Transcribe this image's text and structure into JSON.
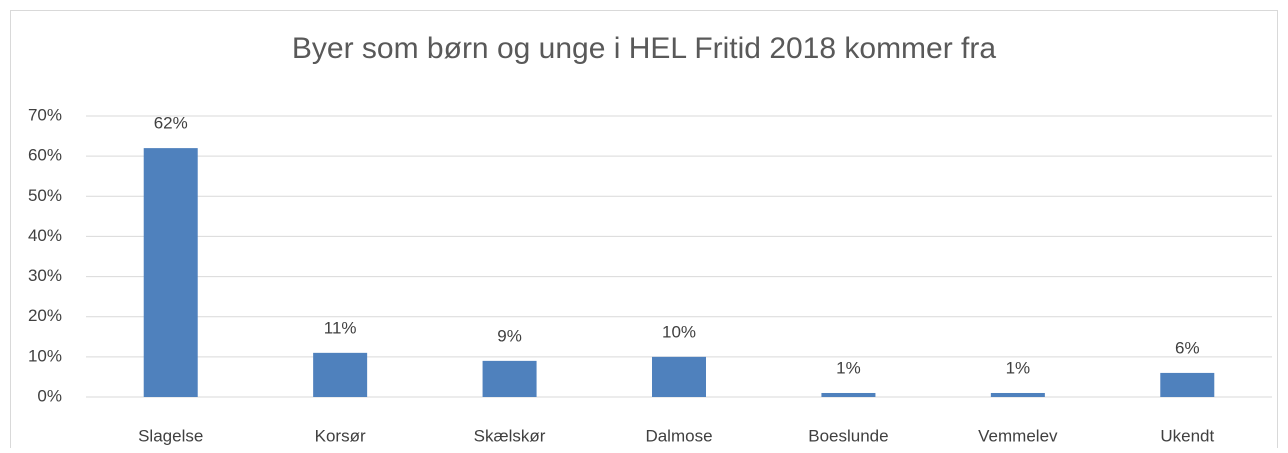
{
  "chart_data": {
    "type": "bar",
    "title": "Byer som børn og unge i HEL Fritid 2018 kommer fra",
    "categories": [
      "Slagelse",
      "Korsør",
      "Skælskør",
      "Dalmose",
      "Boeslunde",
      "Vemmelev",
      "Ukendt"
    ],
    "values": [
      62,
      11,
      9,
      10,
      1,
      1,
      6
    ],
    "value_labels": [
      "62%",
      "11%",
      "9%",
      "10%",
      "1%",
      "1%",
      "6%"
    ],
    "color": "#4f81bd",
    "ylim": [
      0,
      70
    ],
    "yticks": [
      {
        "value": 0,
        "label": "0%"
      },
      {
        "value": 10,
        "label": "10%"
      },
      {
        "value": 20,
        "label": "20%"
      },
      {
        "value": 30,
        "label": "30%"
      },
      {
        "value": 40,
        "label": "40%"
      },
      {
        "value": 50,
        "label": "50%"
      },
      {
        "value": 60,
        "label": "60%"
      },
      {
        "value": 70,
        "label": "70%"
      }
    ],
    "grid": true
  }
}
